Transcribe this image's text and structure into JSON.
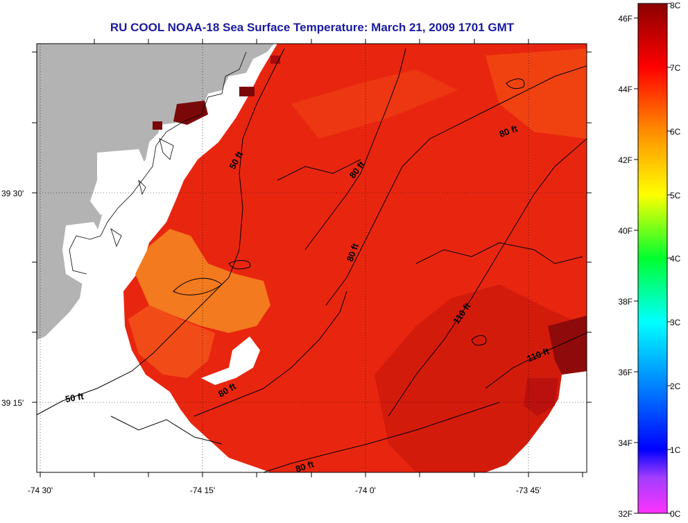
{
  "title": "RU COOL  NOAA-18  Sea Surface Temperature:  March 21, 2009 1701 GMT",
  "map": {
    "lat_labels": [
      "39 30'",
      "39 15'"
    ],
    "lon_labels": [
      "-74 30'",
      "-74 15'",
      "-74 0'",
      "-73 45'"
    ],
    "contour_labels": [
      "50 ft",
      "80 ft",
      "80 ft",
      "80 ft",
      "80 ft",
      "80 ft",
      "110 ft",
      "110 ft",
      "50 ft"
    ],
    "colors": {
      "land": "#b3b3b3",
      "no_data": "#ffffff",
      "sst_warm": "#e8230f",
      "sst_mid": "#f24a12",
      "sst_nearshore": "#f37a1e",
      "sst_dark": "#b50f0f",
      "sst_darkest": "#7a0808"
    }
  },
  "colorbar": {
    "celsius_labels": [
      "8C",
      "7C",
      "6C",
      "5C",
      "4C",
      "3C",
      "2C",
      "1C",
      "0C"
    ],
    "fahrenheit_labels": [
      "46F",
      "44F",
      "42F",
      "40F",
      "38F",
      "36F",
      "34F",
      "32F"
    ],
    "range_c": [
      0,
      8
    ],
    "stops": [
      "#ff33ff",
      "#0000ff",
      "#00ffff",
      "#00ff00",
      "#ffff00",
      "#ff8c00",
      "#ff0000",
      "#8b0000"
    ]
  }
}
